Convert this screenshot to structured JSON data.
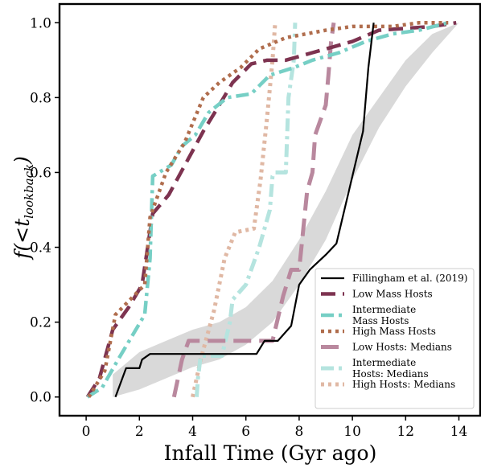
{
  "chart_data": {
    "type": "line",
    "xlabel": "Infall Time (Gyr ago)",
    "ylabel_main": "f(<t",
    "ylabel_sub": "lookback",
    "ylabel_close": ")",
    "xlim": [
      -1,
      14.8
    ],
    "ylim": [
      -0.05,
      1.05
    ],
    "xticks": [
      0,
      2,
      4,
      6,
      8,
      10,
      12,
      14
    ],
    "yticks": [
      0.0,
      0.2,
      0.4,
      0.6,
      0.8,
      1.0
    ],
    "xtick_labels": [
      "0",
      "2",
      "4",
      "6",
      "8",
      "10",
      "12",
      "14"
    ],
    "ytick_labels": [
      "0.0",
      "0.2",
      "0.4",
      "0.6",
      "0.8",
      "1.0"
    ],
    "grid": false,
    "legend_position": "bottom-right",
    "band": {
      "color": "#d9d9d9",
      "upper": [
        [
          1.0,
          0.06
        ],
        [
          2.0,
          0.12
        ],
        [
          3.0,
          0.15
        ],
        [
          4.0,
          0.18
        ],
        [
          5.0,
          0.2
        ],
        [
          6.0,
          0.24
        ],
        [
          7.0,
          0.31
        ],
        [
          8.0,
          0.42
        ],
        [
          9.0,
          0.55
        ],
        [
          10.0,
          0.7
        ],
        [
          11.0,
          0.8
        ],
        [
          12.0,
          0.9
        ],
        [
          13.0,
          0.97
        ],
        [
          14.0,
          1.0
        ]
      ],
      "lower": [
        [
          14.0,
          1.0
        ],
        [
          13.0,
          0.92
        ],
        [
          12.0,
          0.83
        ],
        [
          11.0,
          0.72
        ],
        [
          10.0,
          0.58
        ],
        [
          9.0,
          0.42
        ],
        [
          8.0,
          0.3
        ],
        [
          7.0,
          0.2
        ],
        [
          6.0,
          0.14
        ],
        [
          5.0,
          0.1
        ],
        [
          4.0,
          0.08
        ],
        [
          3.0,
          0.05
        ],
        [
          2.0,
          0.02
        ],
        [
          1.0,
          0.0
        ]
      ]
    },
    "series": [
      {
        "name": "Fillingham et al. (2019)",
        "color": "#000000",
        "width": 2.2,
        "dash": "",
        "opacity": 1,
        "points": [
          [
            1.1,
            0.0
          ],
          [
            1.5,
            0.077
          ],
          [
            1.9,
            0.077
          ],
          [
            2.0,
            0.077
          ],
          [
            2.1,
            0.1
          ],
          [
            2.4,
            0.115
          ],
          [
            6.4,
            0.115
          ],
          [
            6.7,
            0.15
          ],
          [
            7.2,
            0.15
          ],
          [
            7.7,
            0.19
          ],
          [
            8.0,
            0.3
          ],
          [
            8.4,
            0.34
          ],
          [
            9.0,
            0.38
          ],
          [
            9.4,
            0.41
          ],
          [
            9.7,
            0.5
          ],
          [
            10.1,
            0.62
          ],
          [
            10.4,
            0.71
          ],
          [
            10.6,
            0.88
          ],
          [
            10.8,
            1.0
          ]
        ]
      },
      {
        "name": "Low Mass Hosts",
        "color": "#7d3350",
        "width": 4.5,
        "dash": "18 9",
        "opacity": 1,
        "points": [
          [
            0.05,
            0.0
          ],
          [
            0.5,
            0.05
          ],
          [
            1.0,
            0.18
          ],
          [
            1.6,
            0.24
          ],
          [
            2.1,
            0.3
          ],
          [
            2.5,
            0.49
          ],
          [
            3.1,
            0.54
          ],
          [
            4.4,
            0.71
          ],
          [
            5.0,
            0.78
          ],
          [
            5.5,
            0.84
          ],
          [
            6.2,
            0.89
          ],
          [
            6.8,
            0.9
          ],
          [
            7.5,
            0.9
          ],
          [
            8.5,
            0.92
          ],
          [
            10.0,
            0.95
          ],
          [
            11.0,
            0.98
          ],
          [
            13.0,
            0.99
          ],
          [
            13.9,
            1.0
          ]
        ]
      },
      {
        "name": "Intermediate Mass Hosts",
        "color": "#76cfc5",
        "width": 4.5,
        "dash": "16 6 4 6",
        "opacity": 1,
        "points": [
          [
            0.05,
            0.0
          ],
          [
            0.6,
            0.025
          ],
          [
            1.2,
            0.1
          ],
          [
            2.2,
            0.22
          ],
          [
            2.4,
            0.37
          ],
          [
            2.5,
            0.59
          ],
          [
            3.2,
            0.62
          ],
          [
            3.6,
            0.67
          ],
          [
            4.1,
            0.7
          ],
          [
            4.6,
            0.76
          ],
          [
            5.3,
            0.8
          ],
          [
            6.2,
            0.81
          ],
          [
            6.9,
            0.86
          ],
          [
            7.8,
            0.88
          ],
          [
            8.5,
            0.9
          ],
          [
            9.5,
            0.92
          ],
          [
            10.5,
            0.95
          ],
          [
            11.5,
            0.97
          ],
          [
            12.5,
            0.98
          ],
          [
            13.6,
            1.0
          ]
        ]
      },
      {
        "name": "High Mass Hosts",
        "color": "#b06d4d",
        "width": 4.5,
        "dash": "4 5",
        "opacity": 1,
        "points": [
          [
            0.1,
            0.0
          ],
          [
            0.7,
            0.07
          ],
          [
            1.1,
            0.22
          ],
          [
            2.2,
            0.3
          ],
          [
            2.4,
            0.48
          ],
          [
            3.0,
            0.6
          ],
          [
            3.7,
            0.68
          ],
          [
            4.4,
            0.8
          ],
          [
            5.0,
            0.84
          ],
          [
            5.8,
            0.88
          ],
          [
            6.5,
            0.93
          ],
          [
            7.5,
            0.96
          ],
          [
            9.0,
            0.98
          ],
          [
            10.0,
            0.99
          ],
          [
            11.5,
            0.99
          ],
          [
            12.5,
            1.0
          ],
          [
            13.6,
            1.0
          ]
        ]
      },
      {
        "name": "Low Hosts: Medians",
        "color": "#b9889e",
        "width": 5,
        "dash": "22 10",
        "opacity": 1,
        "points": [
          [
            3.3,
            0.0
          ],
          [
            3.6,
            0.1
          ],
          [
            3.85,
            0.15
          ],
          [
            7.0,
            0.15
          ],
          [
            7.4,
            0.27
          ],
          [
            7.7,
            0.34
          ],
          [
            8.0,
            0.34
          ],
          [
            8.3,
            0.55
          ],
          [
            8.5,
            0.6
          ],
          [
            8.6,
            0.7
          ],
          [
            9.0,
            0.78
          ],
          [
            9.1,
            0.86
          ],
          [
            9.2,
            0.95
          ],
          [
            9.3,
            1.0
          ]
        ]
      },
      {
        "name": "Intermediate Hosts: Medians",
        "color": "#b5e4df",
        "width": 5,
        "dash": "16 6 4 6",
        "opacity": 1,
        "points": [
          [
            4.15,
            0.0
          ],
          [
            4.2,
            0.05
          ],
          [
            4.3,
            0.11
          ],
          [
            5.1,
            0.11
          ],
          [
            5.4,
            0.2
          ],
          [
            5.5,
            0.26
          ],
          [
            6.0,
            0.3
          ],
          [
            6.5,
            0.4
          ],
          [
            6.9,
            0.5
          ],
          [
            7.0,
            0.59
          ],
          [
            7.1,
            0.6
          ],
          [
            7.5,
            0.6
          ],
          [
            7.6,
            0.8
          ],
          [
            7.8,
            0.9
          ],
          [
            7.85,
            1.0
          ]
        ]
      },
      {
        "name": "High Hosts: Medians",
        "color": "#e0b8a4",
        "width": 5,
        "dash": "4 5",
        "opacity": 1,
        "points": [
          [
            4.0,
            0.0
          ],
          [
            4.3,
            0.1
          ],
          [
            4.8,
            0.23
          ],
          [
            5.2,
            0.37
          ],
          [
            5.6,
            0.44
          ],
          [
            6.3,
            0.45
          ],
          [
            6.55,
            0.58
          ],
          [
            6.8,
            0.75
          ],
          [
            7.0,
            0.9
          ],
          [
            7.1,
            1.0
          ]
        ]
      }
    ],
    "legend": [
      {
        "lines": [
          "Fillingham et al. (2019)"
        ]
      },
      {
        "lines": [
          "Low Mass Hosts"
        ]
      },
      {
        "lines": [
          "Intermediate",
          "Mass Hosts"
        ]
      },
      {
        "lines": [
          "High Mass Hosts"
        ]
      },
      {
        "lines": [
          "Low Hosts: Medians"
        ]
      },
      {
        "lines": [
          "Intermediate",
          "Hosts: Medians"
        ]
      },
      {
        "lines": [
          "High Hosts: Medians"
        ]
      }
    ]
  }
}
